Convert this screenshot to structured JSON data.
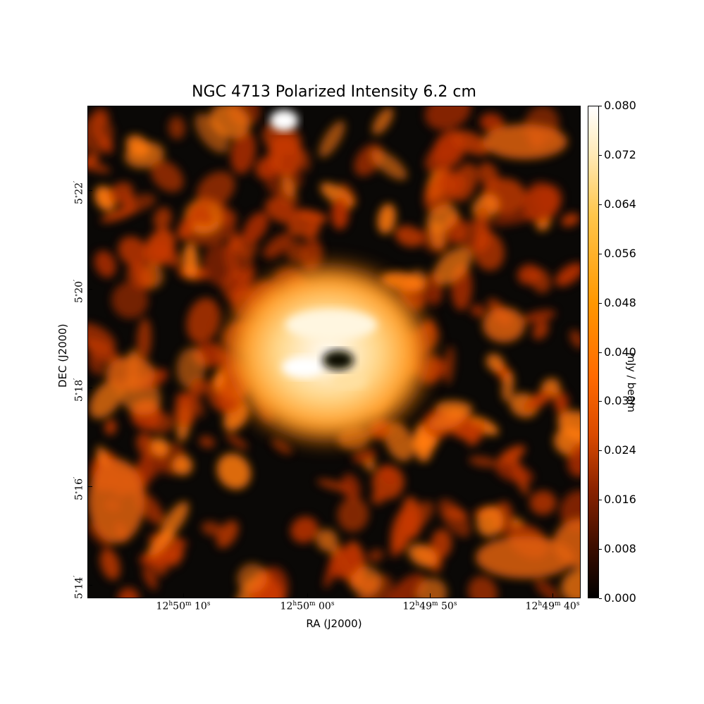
{
  "title": "NGC 4713 Polarized Intensity 6.2 cm",
  "xlabel": "RA (J2000)",
  "ylabel": "DEC (J2000)",
  "colorbar": {
    "label": "mJy / beam",
    "ticks": [
      "0.000",
      "0.008",
      "0.016",
      "0.024",
      "0.032",
      "0.040",
      "0.048",
      "0.056",
      "0.064",
      "0.072",
      "0.080"
    ],
    "min": 0.0,
    "max": 0.08,
    "colormap": "afmhot"
  },
  "ra_ticks": [
    {
      "h": "12",
      "m": "50",
      "s": "10"
    },
    {
      "h": "12",
      "m": "50",
      "s": "00"
    },
    {
      "h": "12",
      "m": "49",
      "s": "50"
    },
    {
      "h": "12",
      "m": "49",
      "s": "40"
    }
  ],
  "dec_ticks": [
    {
      "d": "5",
      "m": "22"
    },
    {
      "d": "5",
      "m": "20"
    },
    {
      "d": "5",
      "m": "18"
    },
    {
      "d": "5",
      "m": "16"
    },
    {
      "d": "5",
      "m": "14"
    }
  ],
  "colors": {
    "background": "#0a0806",
    "emission_low": "#c83a00",
    "emission_mid": "#ff7a10",
    "emission_high": "#ffd27a",
    "peak": "#ffffff"
  }
}
